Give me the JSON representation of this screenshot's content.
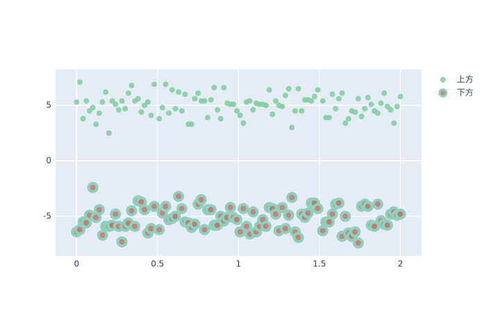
{
  "chart_data": {
    "type": "scatter",
    "x": [
      0,
      0.02,
      0.04,
      0.06,
      0.08,
      0.1,
      0.12,
      0.14,
      0.16,
      0.18,
      0.2,
      0.22,
      0.24,
      0.26,
      0.28,
      0.3,
      0.32,
      0.34,
      0.36,
      0.38,
      0.4,
      0.42,
      0.44,
      0.46,
      0.48,
      0.51,
      0.53,
      0.55,
      0.57,
      0.59,
      0.61,
      0.63,
      0.65,
      0.67,
      0.69,
      0.71,
      0.73,
      0.75,
      0.77,
      0.79,
      0.81,
      0.83,
      0.85,
      0.87,
      0.89,
      0.91,
      0.93,
      0.95,
      0.97,
      0.99,
      1.01,
      1.03,
      1.05,
      1.07,
      1.09,
      1.11,
      1.13,
      1.15,
      1.17,
      1.19,
      1.21,
      1.23,
      1.25,
      1.27,
      1.29,
      1.31,
      1.33,
      1.35,
      1.37,
      1.39,
      1.41,
      1.43,
      1.45,
      1.47,
      1.49,
      1.52,
      1.54,
      1.56,
      1.58,
      1.6,
      1.62,
      1.64,
      1.66,
      1.68,
      1.7,
      1.72,
      1.74,
      1.76,
      1.78,
      1.8,
      1.82,
      1.84,
      1.86,
      1.88,
      1.9,
      1.92,
      1.94,
      1.96,
      1.98,
      2
    ],
    "series": [
      {
        "name": "上方",
        "color": "#7fcc9d",
        "values": [
          5.3,
          7.1,
          3.8,
          5.4,
          4.5,
          4.8,
          3.3,
          4.3,
          5.3,
          6.2,
          2.5,
          5.4,
          5.1,
          4.6,
          5.4,
          4.7,
          6.1,
          6.8,
          5.4,
          5.6,
          4.4,
          5.0,
          5.3,
          4.1,
          6.9,
          3.8,
          4.8,
          6.9,
          4.3,
          6.4,
          4.7,
          6.2,
          4.5,
          6.0,
          3.3,
          3.3,
          5.6,
          6.1,
          5.4,
          5.4,
          3.9,
          5.5,
          6.6,
          4.6,
          3.8,
          6.6,
          5.2,
          5.1,
          5.1,
          4.5,
          4.1,
          3.4,
          5.3,
          5.4,
          4.6,
          5.2,
          5.1,
          5.1,
          5.0,
          6.4,
          4.2,
          5.4,
          5.0,
          4.9,
          5.9,
          6.5,
          3.0,
          4.5,
          6.5,
          4.5,
          5.5,
          5.5,
          5.4,
          5.8,
          6.4,
          5.4,
          3.9,
          3.9,
          6.0,
          4.7,
          5.6,
          6.1,
          3.4,
          3.8,
          4.5,
          4.4,
          5.6,
          4.0,
          4.7,
          5.7,
          5.1,
          4.5,
          4.3,
          5.2,
          6.1,
          4.9,
          4.6,
          3.4,
          4.9,
          5.8
        ]
      },
      {
        "name": "下方",
        "color": "#c0746a",
        "line_color": "#8fcfbd",
        "values": [
          -6.4,
          -6.2,
          -5.5,
          -5.6,
          -4.9,
          -2.4,
          -5.1,
          -4.4,
          -6.7,
          -5.9,
          -5.9,
          -5.8,
          -4.8,
          -5.9,
          -7.3,
          -5.9,
          -5.6,
          -4.5,
          -5.9,
          -3.6,
          -3.7,
          -4.4,
          -6.5,
          -6.1,
          -4.1,
          -6.2,
          -4.7,
          -4.1,
          -5.3,
          -5.2,
          -5.0,
          -3.2,
          -4.3,
          -5.5,
          -5.6,
          -6.0,
          -5.7,
          -3.9,
          -3.5,
          -6.2,
          -4.4,
          -4.4,
          -5.8,
          -5.8,
          -5.0,
          -5.4,
          -5.1,
          -4.2,
          -5.1,
          -5.3,
          -6.4,
          -4.3,
          -5.9,
          -6.6,
          -4.6,
          -6.4,
          -5.9,
          -5.3,
          -5.9,
          -4.2,
          -4.3,
          -4.8,
          -6.3,
          -4.2,
          -6.1,
          -4.9,
          -3.3,
          -6.4,
          -6.9,
          -4.8,
          -5.1,
          -4.7,
          -3.8,
          -3.8,
          -4.3,
          -6.3,
          -5.5,
          -5.5,
          -4.8,
          -3.9,
          -3.8,
          -6.8,
          -5.0,
          -6.5,
          -6.8,
          -6.4,
          -7.4,
          -4.1,
          -3.9,
          -4.1,
          -5.8,
          -5.9,
          -3.9,
          -5.4,
          -5.7,
          -5.8,
          -4.8,
          -4.6,
          -4.9,
          -4.8
        ]
      }
    ],
    "xlim": [
      -0.13,
      2.13
    ],
    "xticks": [
      0,
      0.5,
      1,
      1.5,
      2
    ],
    "ylim": [
      -8.56,
      8.25
    ],
    "yticks": [
      -5,
      0,
      5
    ],
    "grid": true,
    "legend": "right"
  }
}
